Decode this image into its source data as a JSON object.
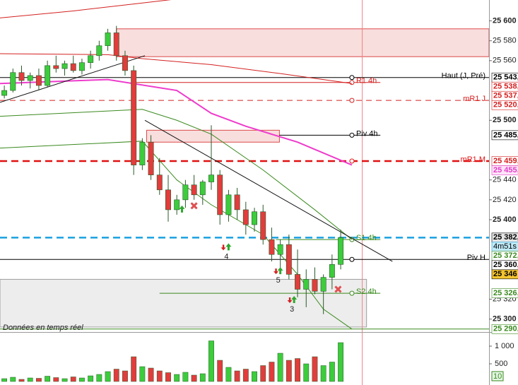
{
  "chart_data": {
    "type": "candlestick",
    "status": "Données en temps réel",
    "xlim": [
      -0.5,
      56.2
    ],
    "ylim": [
      25287,
      25621
    ],
    "yticks": [
      {
        "value": 25600,
        "label": "25 600"
      },
      {
        "value": 25580,
        "label": "25 580"
      },
      {
        "value": 25560,
        "label": "25 560"
      },
      {
        "value": 25500,
        "label": "25 500"
      },
      {
        "value": 25440,
        "label": "25 440"
      },
      {
        "value": 25420,
        "label": "25 420"
      },
      {
        "value": 25400,
        "label": "25 400"
      },
      {
        "value": 25320,
        "label": "25 320"
      },
      {
        "value": 25300,
        "label": "25 300"
      }
    ],
    "up_color": "#3ccc3c",
    "down_color": "#e23c3c",
    "open": [
      25525,
      25530,
      25548,
      25540,
      25545,
      25535,
      25555,
      25552,
      25557,
      25550,
      25558,
      25565,
      25575,
      25588,
      25565,
      25550,
      25455,
      25478,
      25445,
      25430,
      25410,
      25420,
      25435,
      25425,
      25438,
      25445,
      25405,
      25425,
      25410,
      25395,
      25408,
      25380,
      25365,
      25375,
      25345,
      25330,
      25340,
      25328,
      25342,
      25355
    ],
    "high": [
      25535,
      25552,
      25555,
      25548,
      25552,
      25560,
      25565,
      25560,
      25565,
      25562,
      25570,
      25580,
      25592,
      25595,
      25570,
      25555,
      25482,
      25485,
      25462,
      25445,
      25425,
      25440,
      25445,
      25440,
      25495,
      25450,
      25430,
      25432,
      25418,
      25412,
      25415,
      25392,
      25380,
      25385,
      25370,
      25350,
      25352,
      25345,
      25365,
      25390
    ],
    "low": [
      25522,
      25528,
      25535,
      25532,
      25530,
      25533,
      25548,
      25545,
      25548,
      25546,
      25552,
      25560,
      25570,
      25560,
      25545,
      25445,
      25450,
      25440,
      25425,
      25398,
      25405,
      25412,
      25420,
      25415,
      25430,
      25395,
      25398,
      25400,
      25385,
      25388,
      25375,
      25358,
      25350,
      25340,
      25322,
      25312,
      25325,
      25305,
      25330,
      25350
    ],
    "close": [
      25530,
      25548,
      25540,
      25545,
      25535,
      25555,
      25552,
      25557,
      25550,
      25558,
      25565,
      25575,
      25588,
      25565,
      25550,
      25455,
      25478,
      25445,
      25430,
      25410,
      25420,
      25435,
      25425,
      25438,
      25445,
      25405,
      25425,
      25410,
      25395,
      25408,
      25380,
      25365,
      25375,
      25345,
      25330,
      25340,
      25328,
      25342,
      25355,
      25382
    ],
    "volume": {
      "values": [
        80,
        120,
        60,
        100,
        90,
        150,
        110,
        80,
        130,
        100,
        160,
        200,
        280,
        350,
        300,
        700,
        420,
        380,
        300,
        250,
        200,
        260,
        180,
        220,
        1150,
        600,
        400,
        300,
        350,
        280,
        450,
        550,
        800,
        600,
        650,
        500,
        700,
        450,
        550,
        1100
      ],
      "ylim": [
        0,
        1300
      ],
      "yticks": [
        {
          "value": 1000,
          "label": "1 000"
        },
        500
      ],
      "badge": "10"
    },
    "indicators": [
      {
        "color": "#d42020",
        "x": [
          -0.5,
          8,
          16,
          20
        ],
        "values": [
          25603,
          25610,
          25618,
          25622
        ]
      },
      {
        "color": "#d42020",
        "x": [
          -0.5,
          12,
          16,
          24,
          32,
          40.3
        ],
        "values": [
          25567,
          25566,
          25562,
          25556,
          25547,
          25537
        ]
      },
      {
        "color": "#ee3ccc",
        "x": [
          -0.5,
          12,
          20,
          24,
          28,
          34,
          40.3
        ],
        "values": [
          25537,
          25541,
          25530,
          25507,
          25494,
          25478,
          25455
        ]
      },
      {
        "color": "#3a8a1e",
        "x": [
          -0.5,
          16,
          20,
          24,
          30,
          36,
          40.3
        ],
        "values": [
          25504,
          25511,
          25500,
          25486,
          25450,
          25410,
          25380
        ]
      },
      {
        "color": "#3a8a1e",
        "x": [
          -0.5,
          16,
          20,
          24,
          30,
          34,
          37,
          40.3
        ],
        "values": [
          25472,
          25479,
          25440,
          25415,
          25385,
          25345,
          25310,
          25290
        ]
      }
    ],
    "zones": [
      {
        "x": [
          13,
          56.2
        ],
        "low": 25564,
        "high": 25592,
        "color": "#d42020"
      },
      {
        "x": [
          16.5,
          31.9
        ],
        "low": 25478,
        "high": 25490,
        "color": "#d42020"
      },
      {
        "x": [
          -0.5,
          42
        ],
        "low": 25292,
        "high": 25340,
        "color": "#888888"
      }
    ],
    "trendlines": [
      {
        "x": [
          -0.5,
          16.3
        ],
        "values": [
          25518,
          25565
        ]
      },
      {
        "x": [
          16.3,
          45
        ],
        "values": [
          25500,
          25358
        ]
      }
    ],
    "levels": [
      {
        "label": "Haut (J, Pré)",
        "value": 25543,
        "color": "#000000"
      },
      {
        "label": "R1 4h",
        "value": 25538,
        "color": "#d42020",
        "x": [
          14.7,
          43.6
        ]
      },
      {
        "label": "mR1 J",
        "value": 25520,
        "color": "#d42020",
        "dash": true
      },
      {
        "label": "Piv 4h",
        "value": 25485,
        "color": "#000000",
        "x": [
          31.9,
          43.6
        ]
      },
      {
        "label": "mR1 M",
        "value": 25459,
        "color": "#e01010",
        "dash": true,
        "bold": true
      },
      {
        "value": 25382,
        "color": "#1aa0e0",
        "dash": true,
        "bold": true
      },
      {
        "label": "S1 4h",
        "value": 25380,
        "color": "#3a8a1e",
        "x": [
          31.5,
          43.6
        ]
      },
      {
        "label": "Piv H",
        "value": 25360,
        "color": "#000000"
      },
      {
        "label": "S2 4h",
        "value": 25326,
        "color": "#3a8a1e",
        "x": [
          18,
          43.6
        ]
      },
      {
        "value": 25290,
        "color": "#3a8a1e"
      }
    ],
    "now_x": 41.5,
    "badges": [
      {
        "value": 25543,
        "label": "25 543,",
        "color": "#000000",
        "bg": "#ffffff"
      },
      {
        "value": 25538,
        "label": "25 538,",
        "color": "#d42020",
        "bg": "#ffffff"
      },
      {
        "value": 25537,
        "label": "25 537,",
        "color": "#d42020",
        "bg": "#ffffff"
      },
      {
        "value": 25520,
        "label": "25 520,",
        "color": "#d42020",
        "bg": "#ffffff"
      },
      {
        "value": 25485,
        "label": "25 485,",
        "color": "#000000",
        "bg": "#ffffff"
      },
      {
        "value": 25459,
        "label": "25 459,",
        "color": "#d42020",
        "bg": "#ffffff"
      },
      {
        "value": 25455,
        "label": "25 455,",
        "color": "#e040c8",
        "bg": "#ffe4f8"
      },
      {
        "value": 25382,
        "label": "25 382,",
        "color": "#000000",
        "bg": "#e4e4e4"
      },
      {
        "value": 25372,
        "label": "25 372,",
        "color": "#3a8a1e",
        "bg": "#ffffff"
      },
      {
        "value": 25360,
        "label": "25 360,",
        "color": "#000000",
        "bg": "#ffffff"
      },
      {
        "value": 25346,
        "label": "25 346",
        "color": "#000000",
        "bg": "#f4c430"
      },
      {
        "value": 25326,
        "label": "25 326,",
        "color": "#3a8a1e",
        "bg": "#ffffff"
      },
      {
        "value": 25290,
        "label": "25 290,",
        "color": "#3a8a1e",
        "bg": "#ffffff"
      }
    ],
    "timer": "4m51s",
    "signals": [
      {
        "x": 20.6,
        "value": 25410,
        "kind": "up"
      },
      {
        "x": 22,
        "value": 25414,
        "kind": "x"
      },
      {
        "x": 25.4,
        "value": 25372,
        "kind": "down"
      },
      {
        "x": 26,
        "value": 25372,
        "kind": "up",
        "label": "4"
      },
      {
        "x": 31.5,
        "value": 25348,
        "kind": "down"
      },
      {
        "x": 32,
        "value": 25348,
        "kind": "up",
        "label": "5"
      },
      {
        "x": 33.1,
        "value": 25319,
        "kind": "down"
      },
      {
        "x": 33.6,
        "value": 25319,
        "kind": "up",
        "label": "3"
      },
      {
        "x": 38.7,
        "value": 25330,
        "kind": "x"
      }
    ]
  }
}
